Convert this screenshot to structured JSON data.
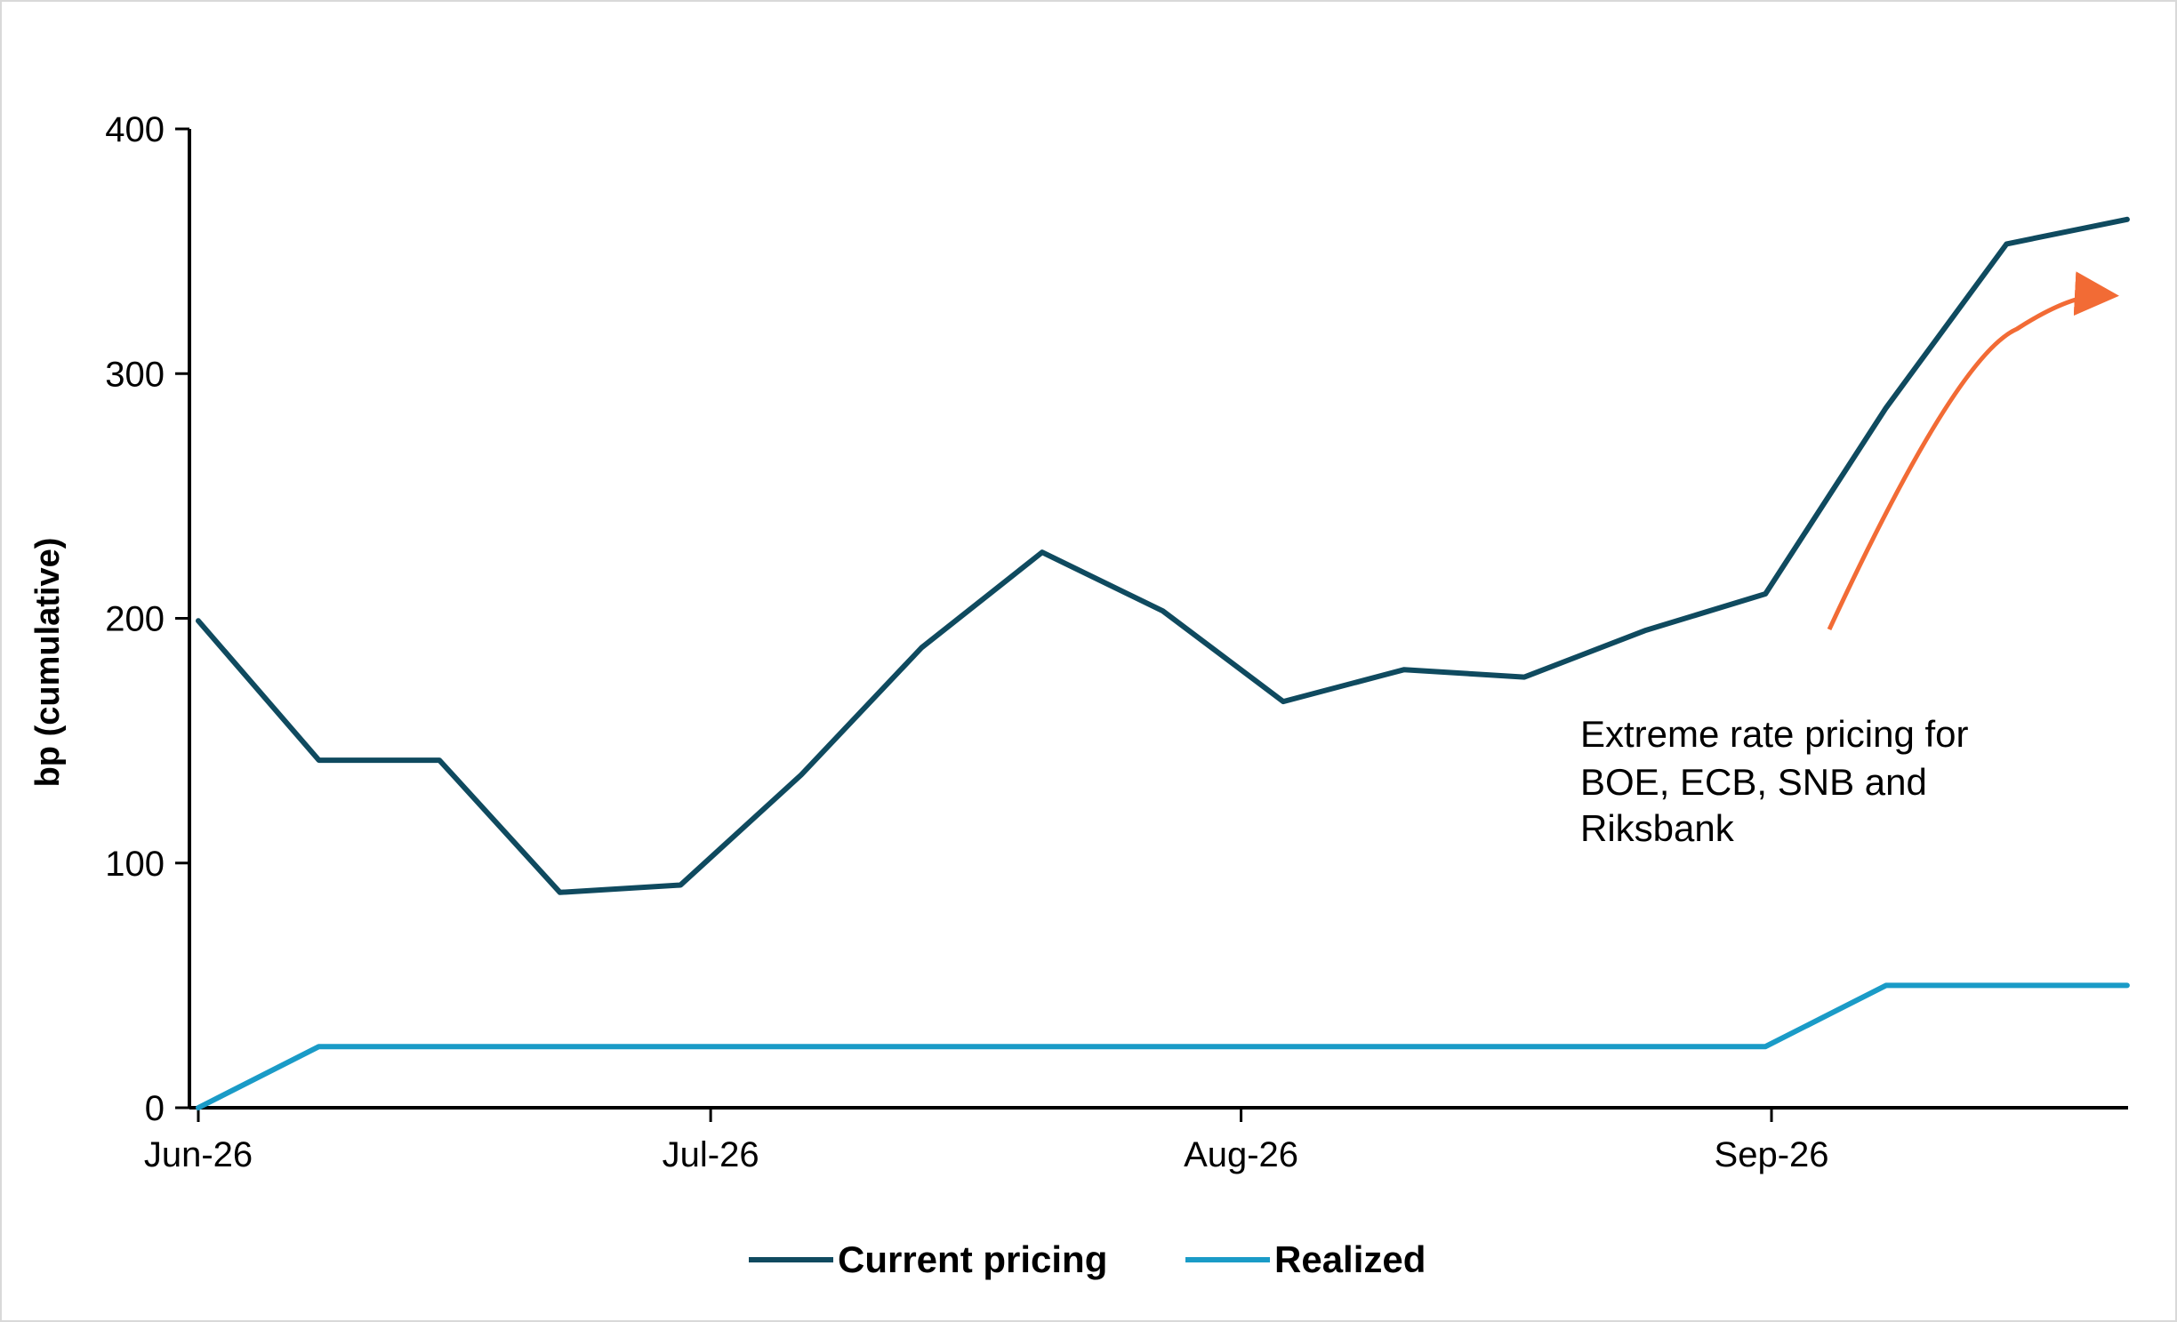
{
  "colors": {
    "current_pricing": "#0f4a5f",
    "realized": "#1a9bc7",
    "arrow": "#f26b35",
    "axis": "#000000"
  },
  "chart_data": {
    "type": "line",
    "ylabel": "bp (cumulative)",
    "ylim": [
      0,
      400
    ],
    "yticks": [
      0,
      100,
      200,
      300,
      400
    ],
    "x_tick_labels": [
      "Jun-26",
      "Jul-26",
      "Aug-26",
      "Sep-26"
    ],
    "x_points": 17,
    "x_tick_positions": [
      0,
      4.25,
      8.65,
      13.05
    ],
    "series": [
      {
        "name": "Current pricing",
        "values": [
          199,
          142,
          142,
          88,
          91,
          136,
          188,
          227,
          203,
          166,
          179,
          176,
          195,
          210,
          286,
          353,
          363
        ]
      },
      {
        "name": "Realized",
        "values": [
          0,
          25,
          25,
          25,
          25,
          25,
          25,
          25,
          25,
          25,
          25,
          25,
          25,
          25,
          50,
          50,
          50
        ]
      }
    ],
    "annotation": {
      "lines": [
        "Extreme rate pricing for",
        "BOE, ECB, SNB and",
        "Riksbank"
      ]
    },
    "legend": {
      "position": "bottom",
      "items": [
        "Current pricing",
        "Realized"
      ]
    }
  }
}
